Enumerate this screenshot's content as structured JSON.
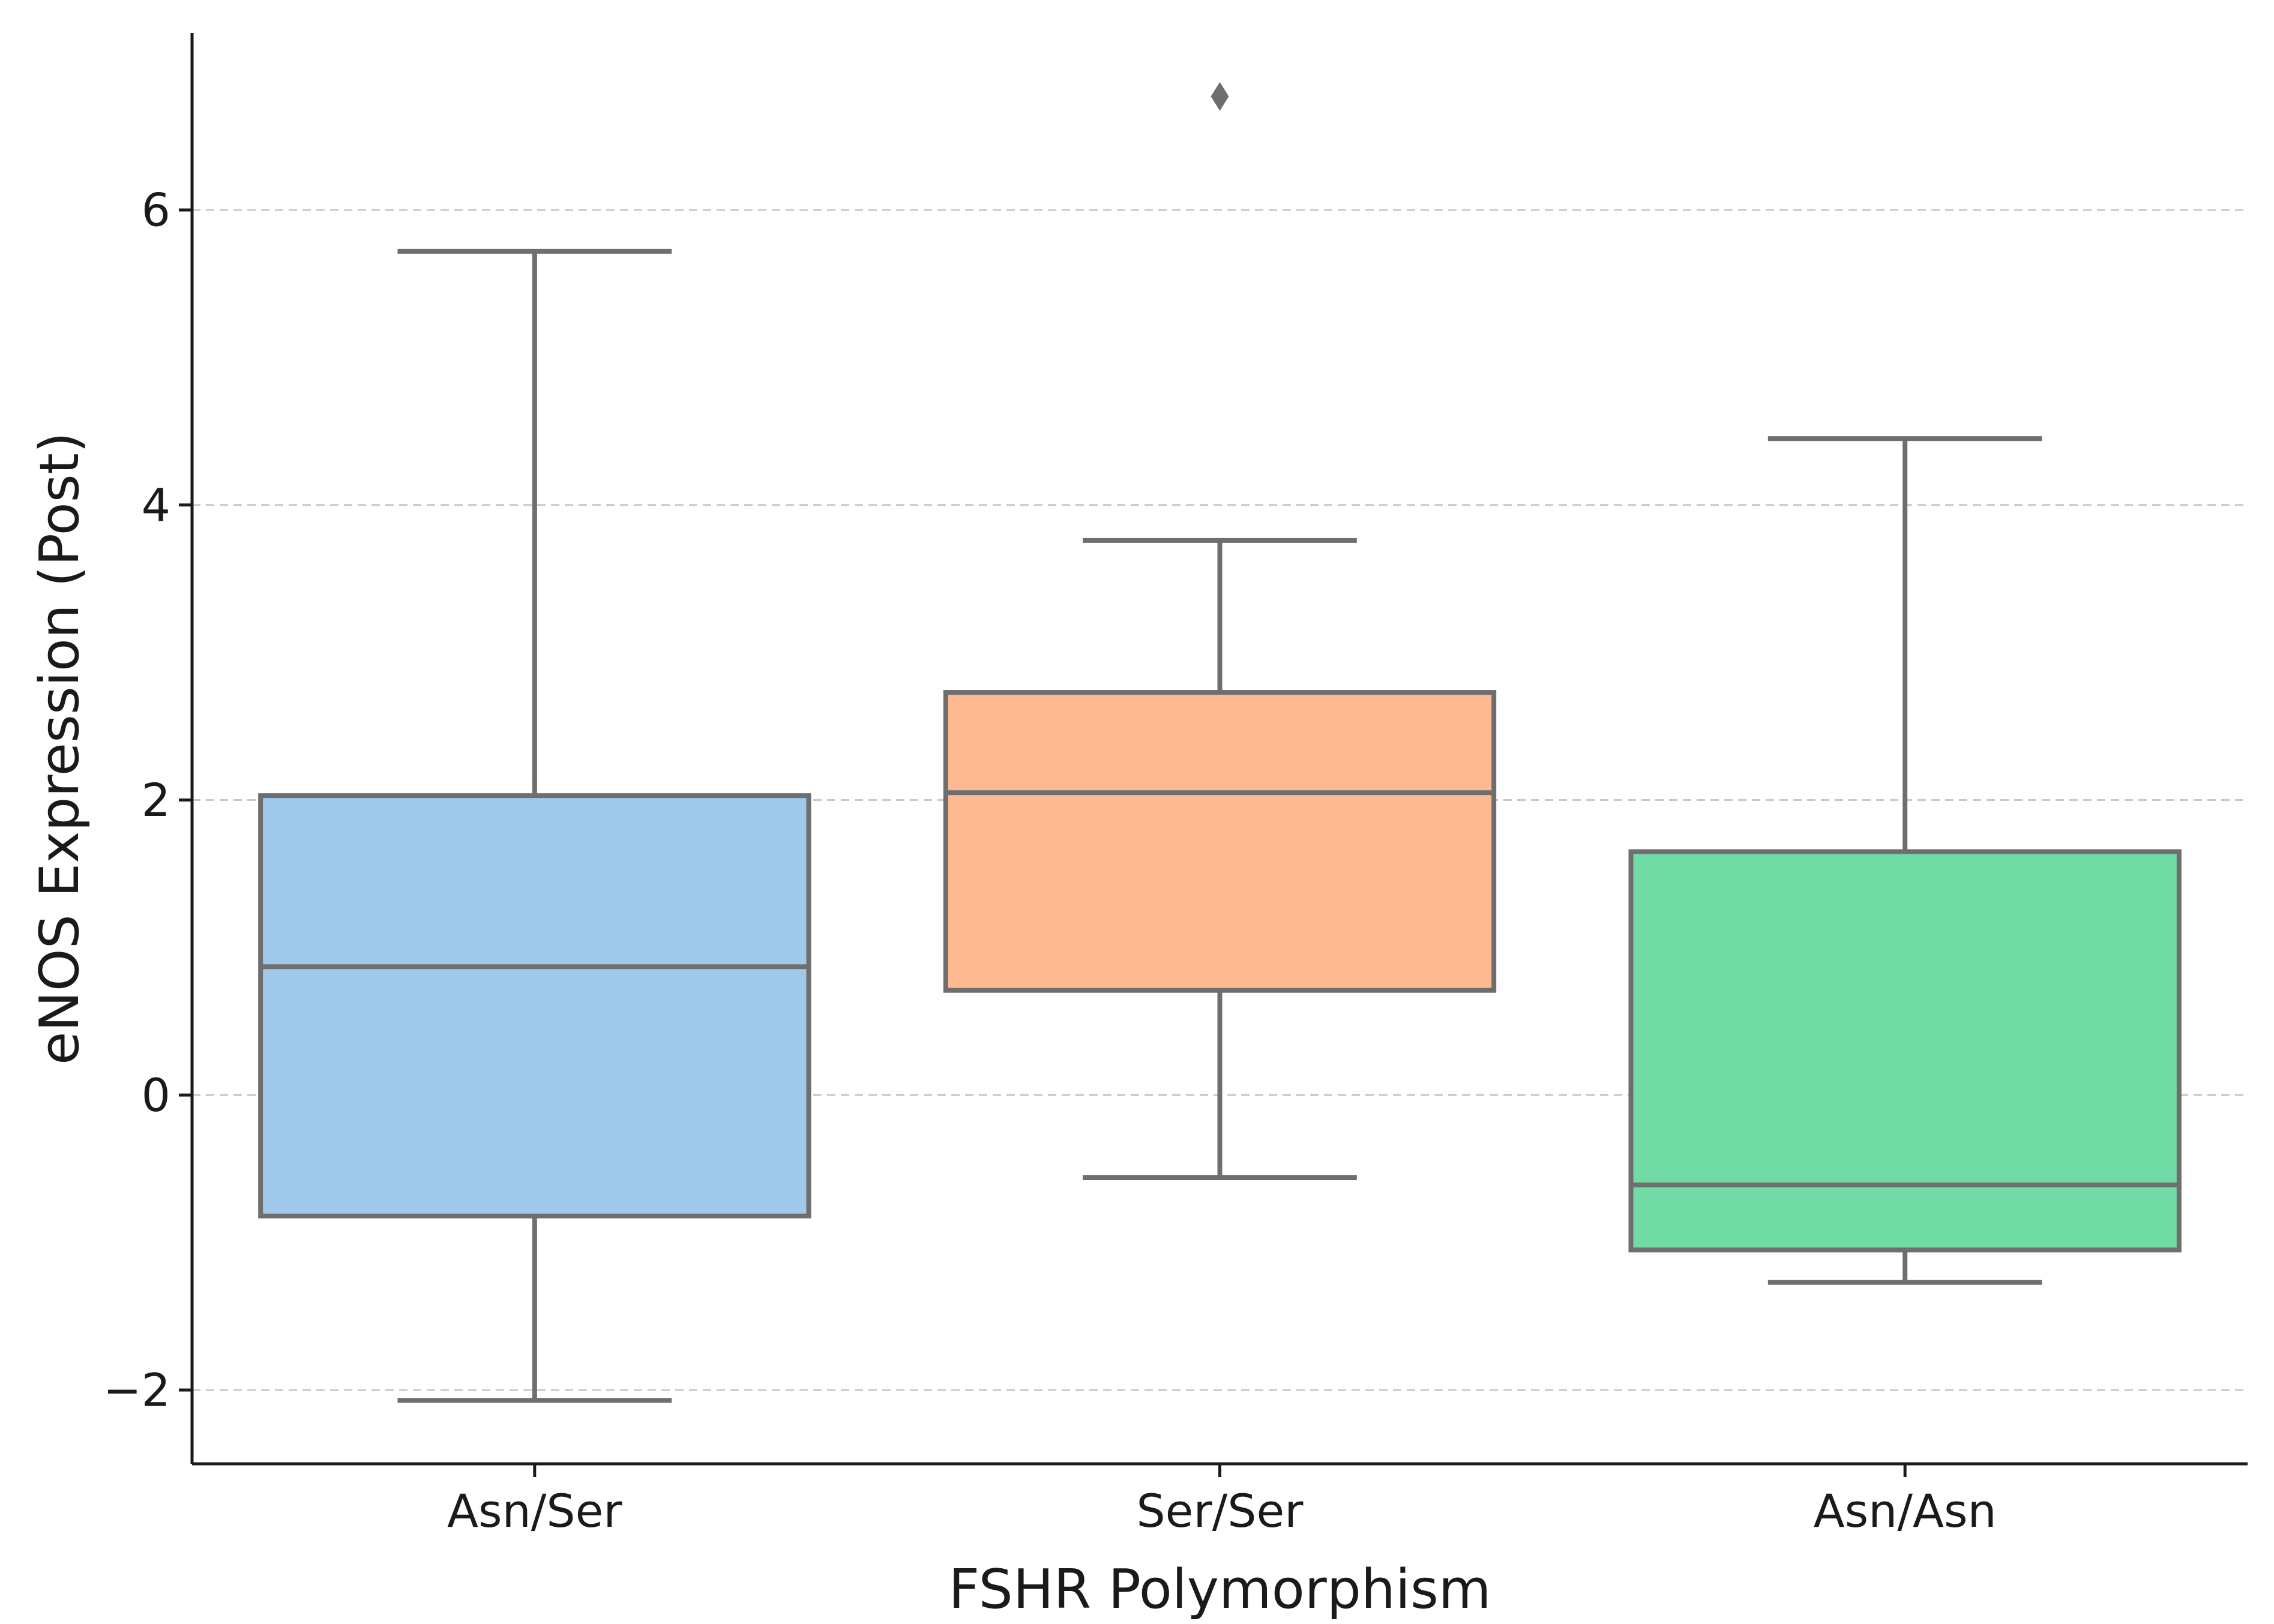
{
  "chart_data": {
    "type": "box",
    "title": "",
    "xlabel": "FSHR Polymorphism",
    "ylabel": "eNOS Expression (Post)",
    "ylim": [
      -2.5,
      7.2
    ],
    "yticks": [
      -2,
      0,
      2,
      4,
      6
    ],
    "ytick_labels": [
      "−2",
      "0",
      "2",
      "4",
      "6"
    ],
    "grid": "horizontal dashed",
    "categories": [
      "Asn/Ser",
      "Ser/Ser",
      "Asn/Asn"
    ],
    "boxes": [
      {
        "category": "Asn/Ser",
        "whisker_low": -2.07,
        "q1": -0.82,
        "median": 0.87,
        "q3": 2.03,
        "whisker_high": 5.72,
        "outliers": [],
        "color": "#a0c8ea"
      },
      {
        "category": "Ser/Ser",
        "whisker_low": -0.56,
        "q1": 0.71,
        "median": 2.05,
        "q3": 2.73,
        "whisker_high": 3.76,
        "outliers": [
          6.77
        ],
        "color": "#ffb992"
      },
      {
        "category": "Asn/Asn",
        "whisker_low": -1.27,
        "q1": -1.05,
        "median": -0.61,
        "q3": 1.65,
        "whisker_high": 4.45,
        "outliers": [],
        "color": "#70dba4"
      }
    ],
    "line_color": "#6e6e6e",
    "grid_color": "#c8c8c8"
  }
}
